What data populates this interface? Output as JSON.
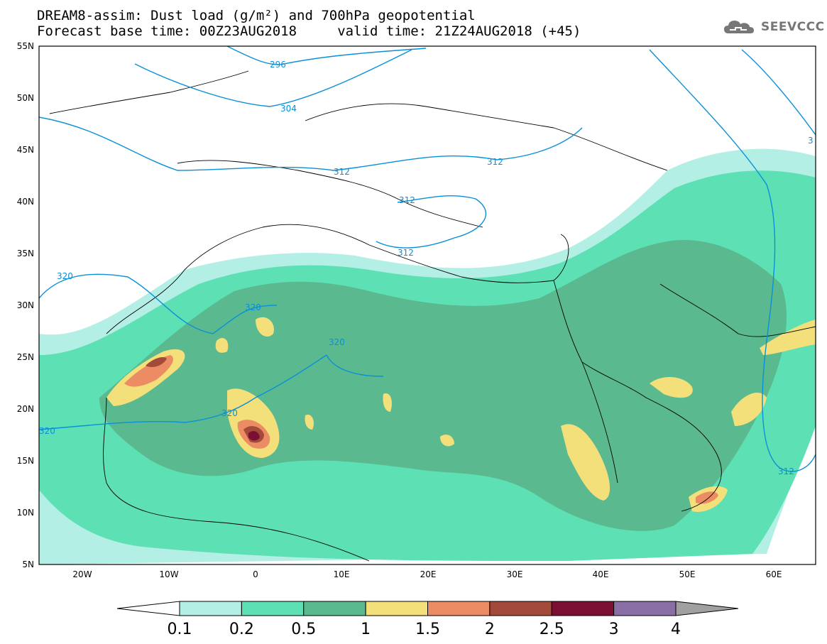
{
  "title_line1": "DREAM8-assim: Dust load (g/m²) and 700hPa geopotential",
  "title_line2": "Forecast base time: 00Z23AUG2018     valid time: 21Z24AUG2018 (+45)",
  "logo": {
    "icon": "cloud-icon",
    "text": "SEEVCCC"
  },
  "lat_labels": [
    "55N",
    "50N",
    "45N",
    "40N",
    "35N",
    "30N",
    "25N",
    "20N",
    "15N",
    "10N",
    "5N"
  ],
  "lon_labels": [
    "20W",
    "10W",
    "0",
    "10E",
    "20E",
    "30E",
    "40E",
    "50E",
    "60E"
  ],
  "contour_labels": [
    "296",
    "304",
    "312",
    "312",
    "312",
    "312",
    "320",
    "320",
    "320",
    "320",
    "320",
    "312",
    "3"
  ],
  "colorbar": {
    "levels": [
      "0.1",
      "0.2",
      "0.5",
      "1",
      "1.5",
      "2",
      "2.5",
      "3",
      "4"
    ],
    "colors": [
      "#b4efe6",
      "#5ee0b5",
      "#5bb98f",
      "#f4e07a",
      "#eb8c64",
      "#a34a3a",
      "#7b0f33",
      "#8a6fa6"
    ],
    "under_color": "#ffffff",
    "over_color": "#a0a0a0"
  },
  "colors": {
    "geopotential": "#0a90d8",
    "coast": "#000000"
  }
}
